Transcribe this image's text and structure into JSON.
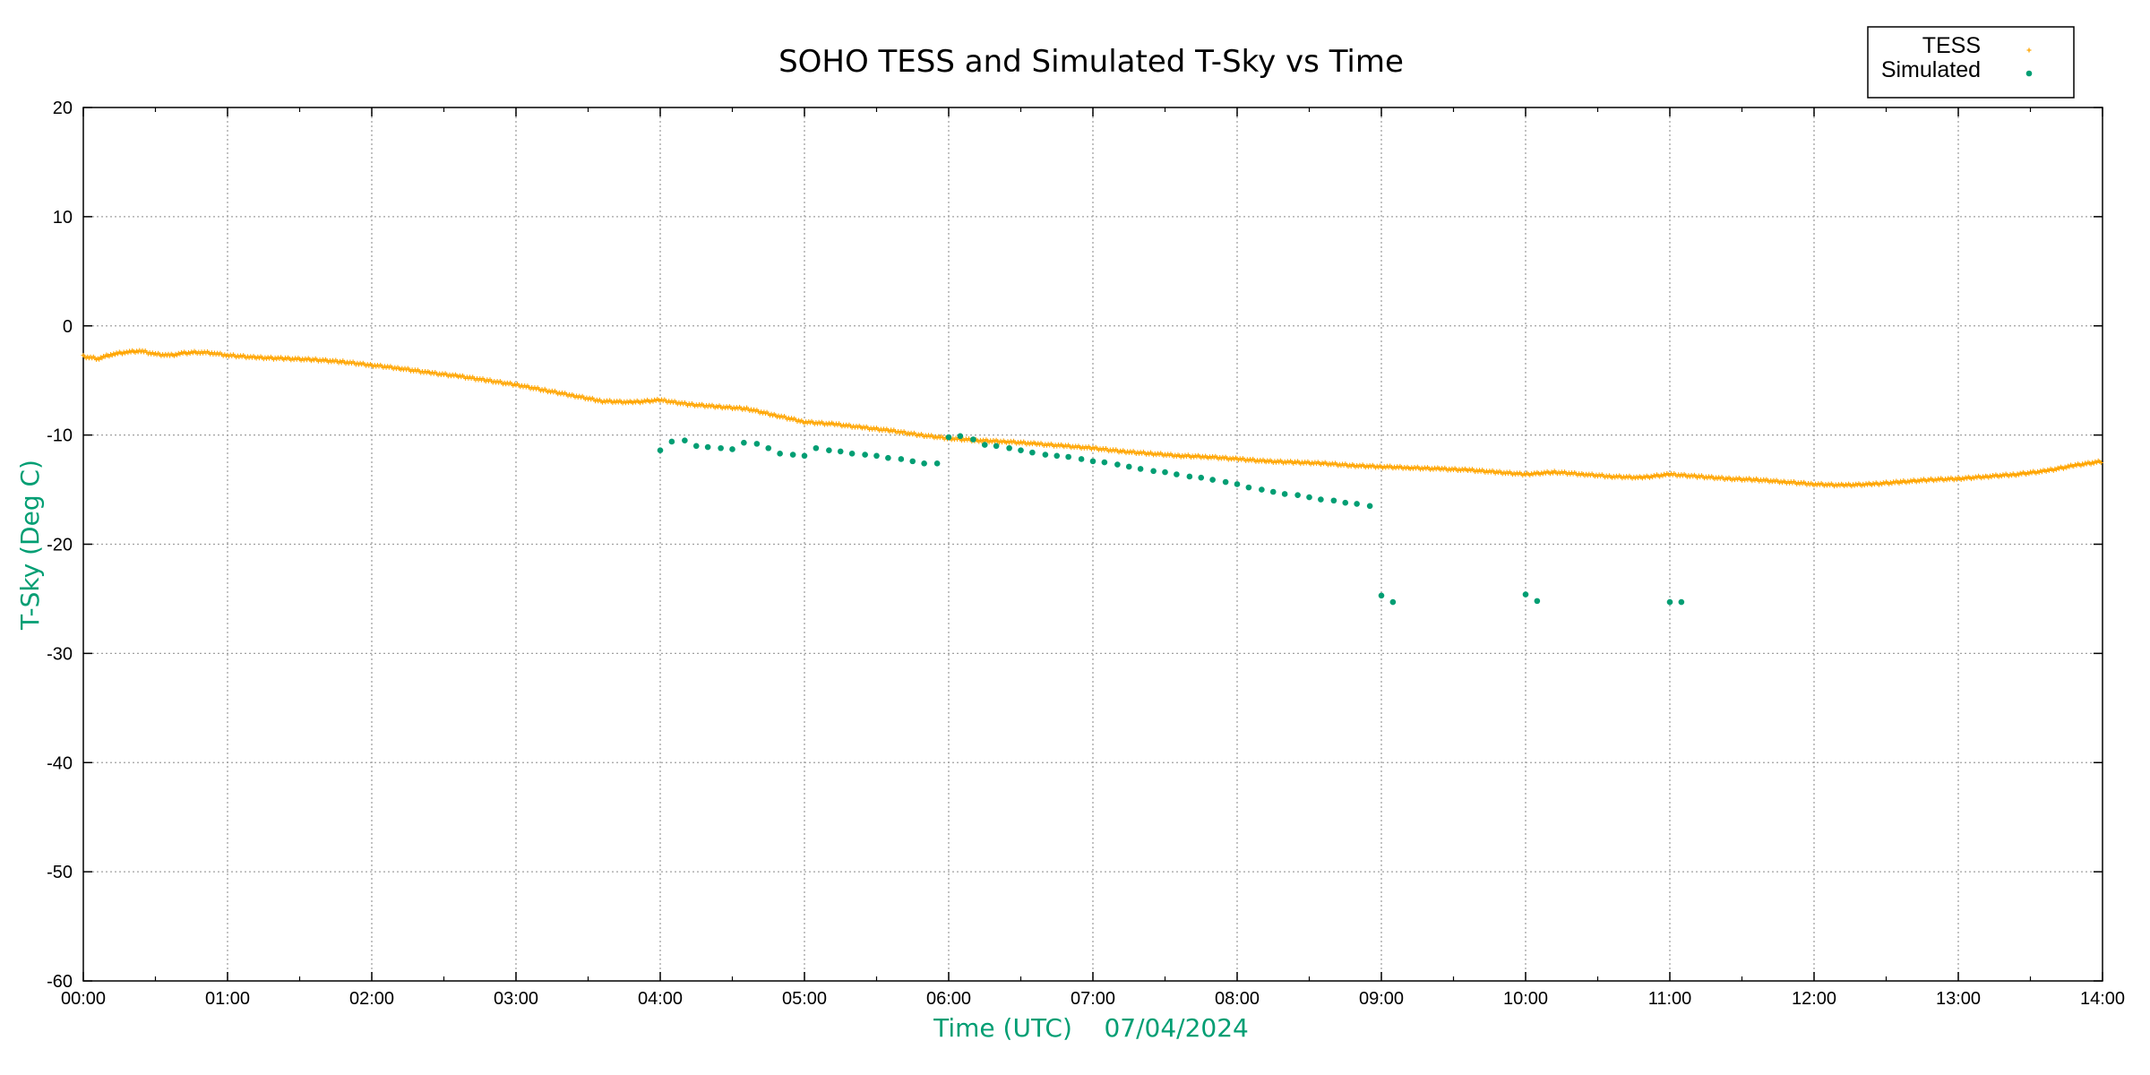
{
  "chart_data": {
    "type": "scatter",
    "title": "SOHO TESS and Simulated T-Sky vs Time",
    "xlabel": "Time (UTC)    07/04/2024",
    "ylabel": "T-Sky (Deg C)",
    "xlim": [
      0,
      14
    ],
    "ylim": [
      -60,
      20
    ],
    "x_ticks": [
      "00:00",
      "01:00",
      "02:00",
      "03:00",
      "04:00",
      "05:00",
      "06:00",
      "07:00",
      "08:00",
      "09:00",
      "10:00",
      "11:00",
      "12:00",
      "13:00",
      "14:00"
    ],
    "y_ticks": [
      "20",
      "10",
      "0",
      "-10",
      "-20",
      "-30",
      "-40",
      "-50",
      "-60"
    ],
    "grid": true,
    "legend_position": "top-right",
    "series": [
      {
        "name": "TESS",
        "color": "#ffa500",
        "marker": "plus",
        "x": [
          0.0,
          0.1,
          0.2,
          0.3,
          0.4,
          0.5,
          0.6,
          0.7,
          0.8,
          0.9,
          1.0,
          1.2,
          1.4,
          1.6,
          1.8,
          2.0,
          2.2,
          2.4,
          2.6,
          2.8,
          3.0,
          3.2,
          3.4,
          3.6,
          3.8,
          4.0,
          4.2,
          4.4,
          4.6,
          4.8,
          5.0,
          5.2,
          5.4,
          5.6,
          5.8,
          6.0,
          6.2,
          6.4,
          6.6,
          6.8,
          7.0,
          7.2,
          7.4,
          7.6,
          7.8,
          8.0,
          8.2,
          8.4,
          8.6,
          8.8,
          9.0,
          9.2,
          9.4,
          9.6,
          9.8,
          10.0,
          10.2,
          10.4,
          10.6,
          10.8,
          11.0,
          11.2,
          11.4,
          11.6,
          11.8,
          12.0,
          12.2,
          12.4,
          12.6,
          12.8,
          13.0,
          13.2,
          13.4,
          13.6,
          13.8,
          14.0
        ],
        "y": [
          -2.8,
          -3.0,
          -2.6,
          -2.4,
          -2.3,
          -2.6,
          -2.7,
          -2.5,
          -2.4,
          -2.5,
          -2.7,
          -2.9,
          -3.0,
          -3.1,
          -3.3,
          -3.6,
          -3.9,
          -4.3,
          -4.6,
          -5.0,
          -5.4,
          -5.9,
          -6.4,
          -6.9,
          -7.0,
          -6.8,
          -7.2,
          -7.4,
          -7.6,
          -8.2,
          -8.8,
          -9.0,
          -9.3,
          -9.6,
          -10.0,
          -10.3,
          -10.5,
          -10.6,
          -10.8,
          -11.0,
          -11.2,
          -11.5,
          -11.7,
          -11.9,
          -12.0,
          -12.2,
          -12.4,
          -12.5,
          -12.6,
          -12.8,
          -12.9,
          -13.0,
          -13.1,
          -13.2,
          -13.4,
          -13.6,
          -13.4,
          -13.6,
          -13.8,
          -13.9,
          -13.6,
          -13.8,
          -14.0,
          -14.1,
          -14.3,
          -14.5,
          -14.6,
          -14.5,
          -14.3,
          -14.1,
          -14.0,
          -13.8,
          -13.6,
          -13.3,
          -12.8,
          -12.4
        ]
      },
      {
        "name": "Simulated",
        "color": "#009e73",
        "marker": "dot",
        "x": [
          4.0,
          4.08,
          4.17,
          4.25,
          4.33,
          4.42,
          4.5,
          4.58,
          4.67,
          4.75,
          4.83,
          4.92,
          5.0,
          5.08,
          5.17,
          5.25,
          5.33,
          5.42,
          5.5,
          5.58,
          5.67,
          5.75,
          5.83,
          5.92,
          6.0,
          6.08,
          6.17,
          6.25,
          6.33,
          6.42,
          6.5,
          6.58,
          6.67,
          6.75,
          6.83,
          6.92,
          7.0,
          7.08,
          7.17,
          7.25,
          7.33,
          7.42,
          7.5,
          7.58,
          7.67,
          7.75,
          7.83,
          7.92,
          8.0,
          8.08,
          8.17,
          8.25,
          8.33,
          8.42,
          8.5,
          8.58,
          8.67,
          8.75,
          8.83,
          8.92,
          9.0,
          9.08,
          10.0,
          10.08,
          11.0,
          11.08
        ],
        "y": [
          -11.4,
          -10.6,
          -10.5,
          -11.0,
          -11.1,
          -11.2,
          -11.3,
          -10.7,
          -10.8,
          -11.2,
          -11.7,
          -11.8,
          -11.9,
          -11.2,
          -11.4,
          -11.5,
          -11.7,
          -11.8,
          -11.9,
          -12.1,
          -12.2,
          -12.4,
          -12.6,
          -12.6,
          -10.2,
          -10.1,
          -10.4,
          -10.9,
          -11.0,
          -11.2,
          -11.4,
          -11.6,
          -11.8,
          -11.9,
          -12.0,
          -12.2,
          -12.4,
          -12.5,
          -12.7,
          -12.9,
          -13.1,
          -13.3,
          -13.4,
          -13.6,
          -13.8,
          -13.9,
          -14.1,
          -14.3,
          -14.5,
          -14.8,
          -15.0,
          -15.2,
          -15.4,
          -15.5,
          -15.7,
          -15.9,
          -16.0,
          -16.2,
          -16.3,
          -16.5,
          -24.7,
          -25.3,
          -24.6,
          -25.2,
          -25.3,
          -25.3
        ]
      }
    ]
  }
}
